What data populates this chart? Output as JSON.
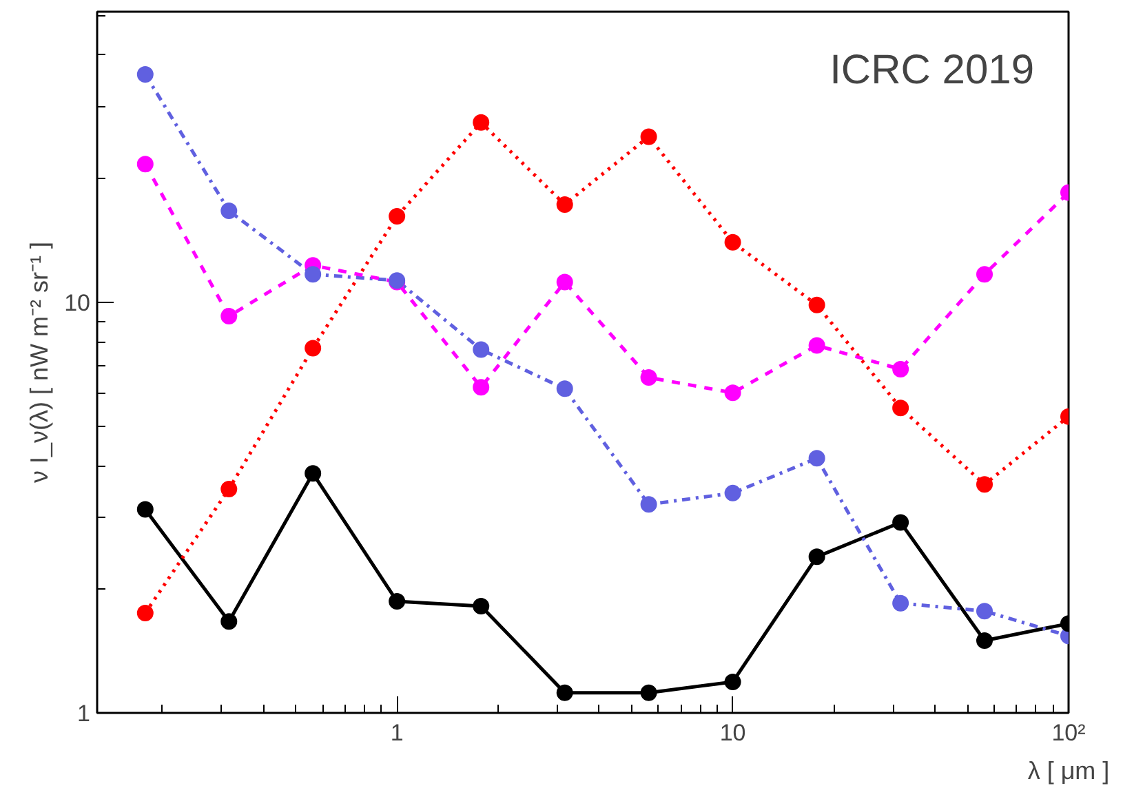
{
  "chart_data": {
    "type": "line",
    "xlabel": "λ [ μm ]",
    "ylabel": "ν I_ν(λ) [ nW m⁻² sr⁻¹ ]",
    "annotations": [
      "ICRC 2019"
    ],
    "log": "xy",
    "grid": false,
    "marker": "circle",
    "x": [
      0.178,
      0.316,
      0.562,
      1,
      1.78,
      3.16,
      5.62,
      10,
      17.8,
      31.6,
      56.2,
      100
    ],
    "xlim": [
      0.128,
      100
    ],
    "ylim": [
      1,
      51
    ],
    "xticks": [
      1,
      10,
      {
        "value": 100,
        "label": "10²"
      }
    ],
    "yticks": [
      1,
      10
    ],
    "series": [
      {
        "color": "#000000",
        "line_style": "solid",
        "values": [
          3.13,
          1.67,
          3.83,
          1.87,
          1.82,
          1.12,
          1.12,
          1.19,
          2.4,
          2.91,
          1.5,
          1.65
        ]
      },
      {
        "color": "#ff0000",
        "line_style": "dotted",
        "values": [
          1.75,
          3.51,
          7.73,
          16.2,
          27.4,
          17.3,
          25.3,
          14.0,
          9.85,
          5.53,
          3.6,
          5.27
        ]
      },
      {
        "color": "#6060e0",
        "line_style": "dashdot",
        "values": [
          35.9,
          16.7,
          11.7,
          11.3,
          7.67,
          6.16,
          3.22,
          3.43,
          4.17,
          1.85,
          1.77,
          1.54
        ]
      },
      {
        "color": "#ff00ff",
        "line_style": "dashed",
        "values": [
          21.7,
          9.25,
          12.3,
          11.2,
          6.21,
          11.2,
          6.56,
          6.02,
          7.85,
          6.87,
          11.7,
          18.5
        ]
      }
    ]
  }
}
